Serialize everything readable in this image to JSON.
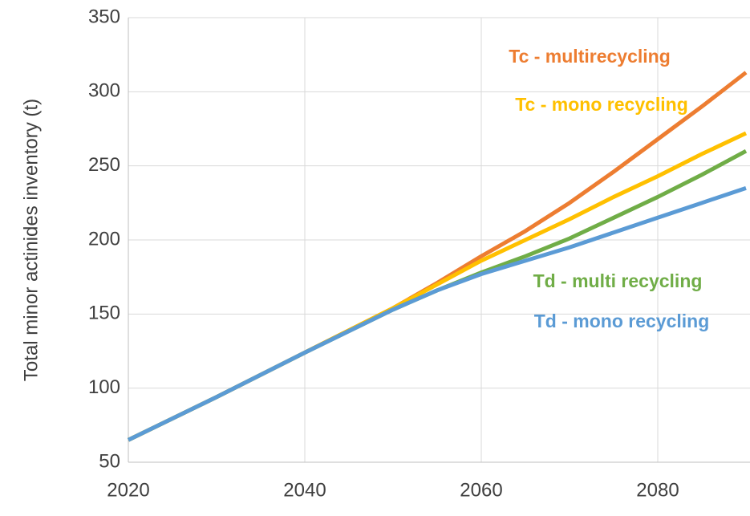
{
  "chart_data": {
    "type": "line",
    "y_label": "Total minor actinides inventory (t)",
    "x": [
      2020,
      2030,
      2040,
      2050,
      2055,
      2060,
      2065,
      2070,
      2075,
      2080,
      2085,
      2090
    ],
    "series": [
      {
        "name": "Tc - multirecycling",
        "color": "#ed7d31",
        "values": [
          65,
          94,
          124,
          154,
          171,
          189,
          206,
          225,
          246,
          268,
          290,
          313
        ]
      },
      {
        "name": "Tc - mono recycling",
        "color": "#ffc000",
        "values": [
          65,
          94,
          124,
          154,
          170,
          186,
          200,
          214,
          229,
          243,
          258,
          272
        ]
      },
      {
        "name": "Td - multi recycling",
        "color": "#70ad47",
        "values": [
          65,
          94,
          124,
          153,
          166,
          178,
          189,
          201,
          215,
          229,
          244,
          260
        ]
      },
      {
        "name": "Td - mono recycling",
        "color": "#5b9bd5",
        "values": [
          65,
          94,
          124,
          153,
          166,
          177,
          186,
          195,
          205,
          215,
          225,
          235
        ]
      }
    ],
    "xlim": [
      2020,
      2090
    ],
    "xticks": [
      2020,
      2040,
      2060,
      2080
    ],
    "ylim": [
      50,
      350
    ],
    "yticks": [
      50,
      100,
      150,
      200,
      250,
      300,
      350
    ],
    "grid": true
  }
}
